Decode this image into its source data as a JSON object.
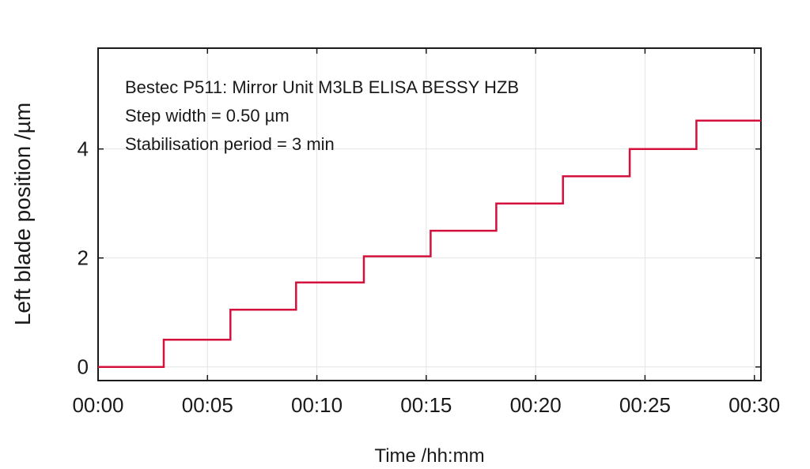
{
  "chart_data": {
    "type": "line",
    "title": "",
    "xlabel": "Time /hh:mm",
    "ylabel": "Left blade position /µm",
    "xlim": [
      0,
      30.3
    ],
    "ylim": [
      -0.25,
      5.85
    ],
    "grid": true,
    "legend": "none",
    "x_ticks": [
      {
        "value": 0,
        "label": "00:00"
      },
      {
        "value": 5,
        "label": "00:05"
      },
      {
        "value": 10,
        "label": "00:10"
      },
      {
        "value": 15,
        "label": "00:15"
      },
      {
        "value": 20,
        "label": "00:20"
      },
      {
        "value": 25,
        "label": "00:25"
      },
      {
        "value": 30,
        "label": "00:30"
      }
    ],
    "y_ticks": [
      {
        "value": 0,
        "label": "0"
      },
      {
        "value": 2,
        "label": "2"
      },
      {
        "value": 4,
        "label": "4"
      }
    ],
    "annotations": [
      "Bestec P511: Mirror Unit M3LB ELISA BESSY HZB",
      "Step width = 0.50 µm",
      "Stabilisation period = 3 min"
    ],
    "series": [
      {
        "color": "#d4103c",
        "x": [
          0,
          3.0,
          3.0,
          6.05,
          6.05,
          9.05,
          9.05,
          12.15,
          12.15,
          15.2,
          15.2,
          18.2,
          18.2,
          21.25,
          21.25,
          24.3,
          24.3,
          24.3,
          27.35,
          27.35,
          30.3
        ],
        "y": [
          0.0,
          0.0,
          0.5,
          0.5,
          1.05,
          1.05,
          1.55,
          1.55,
          2.03,
          2.03,
          2.5,
          2.5,
          3.0,
          3.0,
          3.5,
          3.5,
          3.85,
          4.0,
          4.0,
          4.52,
          4.52
        ]
      }
    ]
  }
}
